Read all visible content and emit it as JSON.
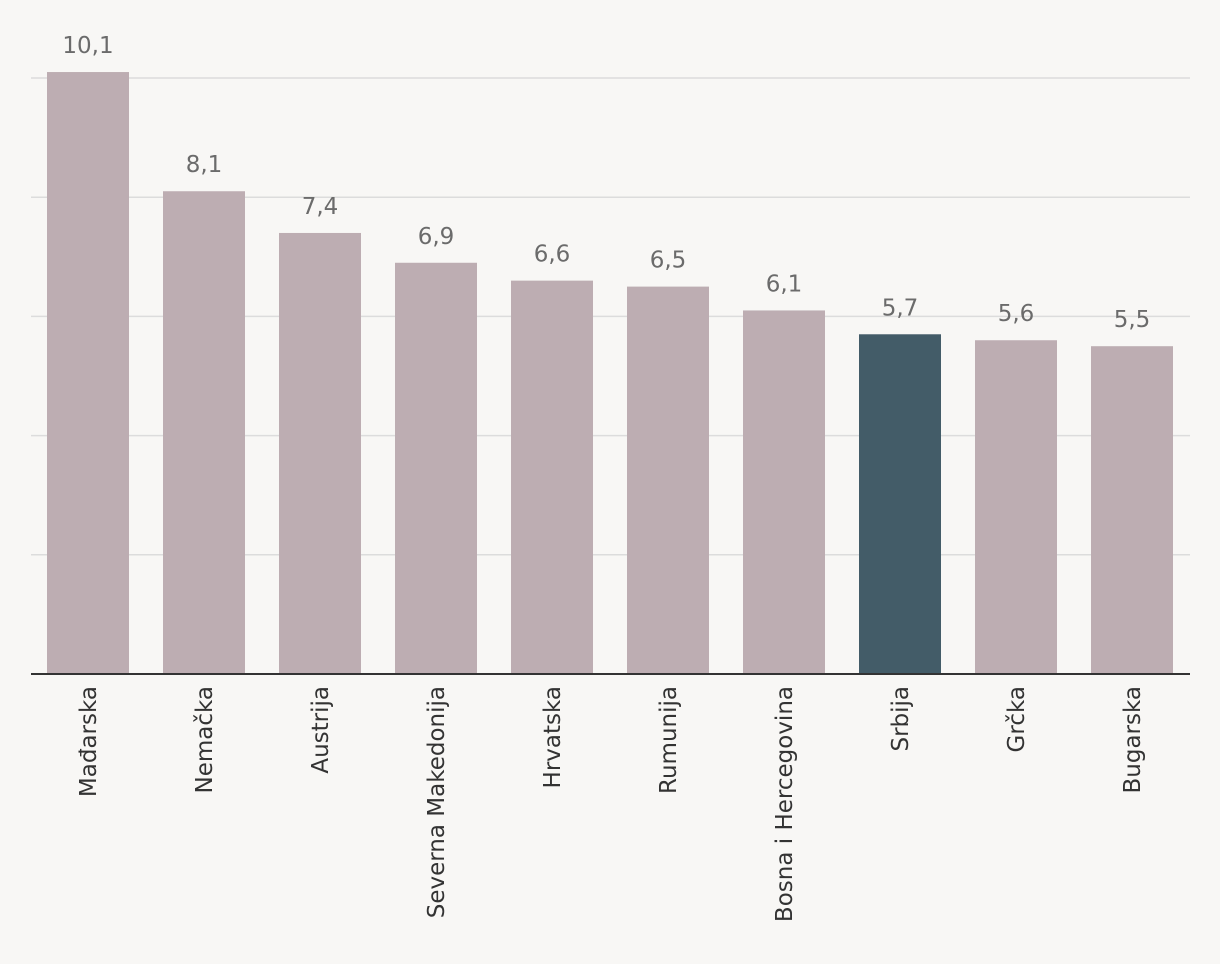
{
  "chart_data": {
    "type": "bar",
    "categories": [
      "Mađarska",
      "Nemačka",
      "Austrija",
      "Severna Makedonija",
      "Hrvatska",
      "Rumunija",
      "Bosna i Hercegovina",
      "Srbija",
      "Grčka",
      "Bugarska"
    ],
    "values": [
      10.1,
      8.1,
      7.4,
      6.9,
      6.6,
      6.5,
      6.1,
      5.7,
      5.6,
      5.5
    ],
    "value_labels": [
      "10,1",
      "8,1",
      "7,4",
      "6,9",
      "6,6",
      "6,5",
      "6,1",
      "5,7",
      "5,6",
      "5,5"
    ],
    "title": "",
    "xlabel": "",
    "ylabel": "",
    "ylim": [
      0,
      10
    ],
    "grid": true,
    "highlight_category": "Srbija",
    "colors": {
      "bar": "#bdadb2",
      "highlight": "#435c68",
      "grid": "#dcdcdc",
      "axis": "#333333",
      "value_label": "#6b6b6b",
      "category_label": "#333333",
      "background": "#f8f7f5"
    }
  }
}
